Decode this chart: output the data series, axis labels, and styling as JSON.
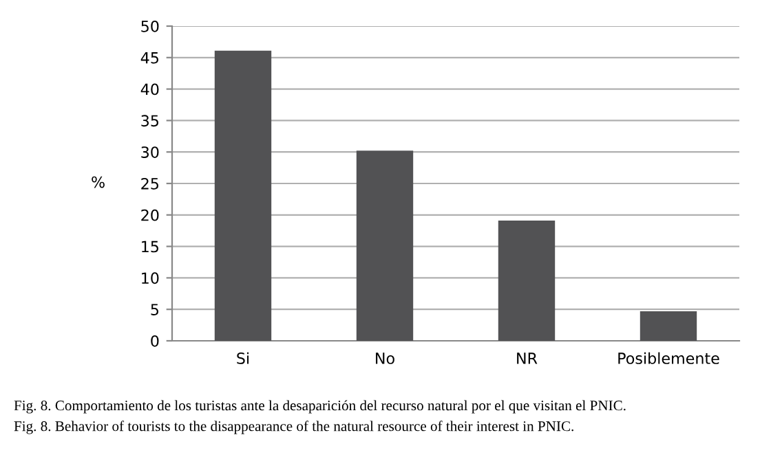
{
  "chart_data": {
    "type": "bar",
    "ylabel": "%",
    "categories": [
      "Si",
      "No",
      "NR",
      "Posiblemente"
    ],
    "values": [
      46.1,
      30.2,
      19.1,
      4.7
    ],
    "color": "#525254",
    "ylim": [
      0,
      50
    ],
    "yticks": [
      0,
      5,
      10,
      15,
      20,
      25,
      30,
      35,
      40,
      45,
      50
    ],
    "grid": "y",
    "annotations": [
      "Fig. 8. Comportamiento de los turistas ante la desaparición del recurso natural por el que visitan el PNIC.",
      "Fig. 8. Behavior of tourists to the disappearance of the natural resource of their interest in PNIC."
    ]
  }
}
